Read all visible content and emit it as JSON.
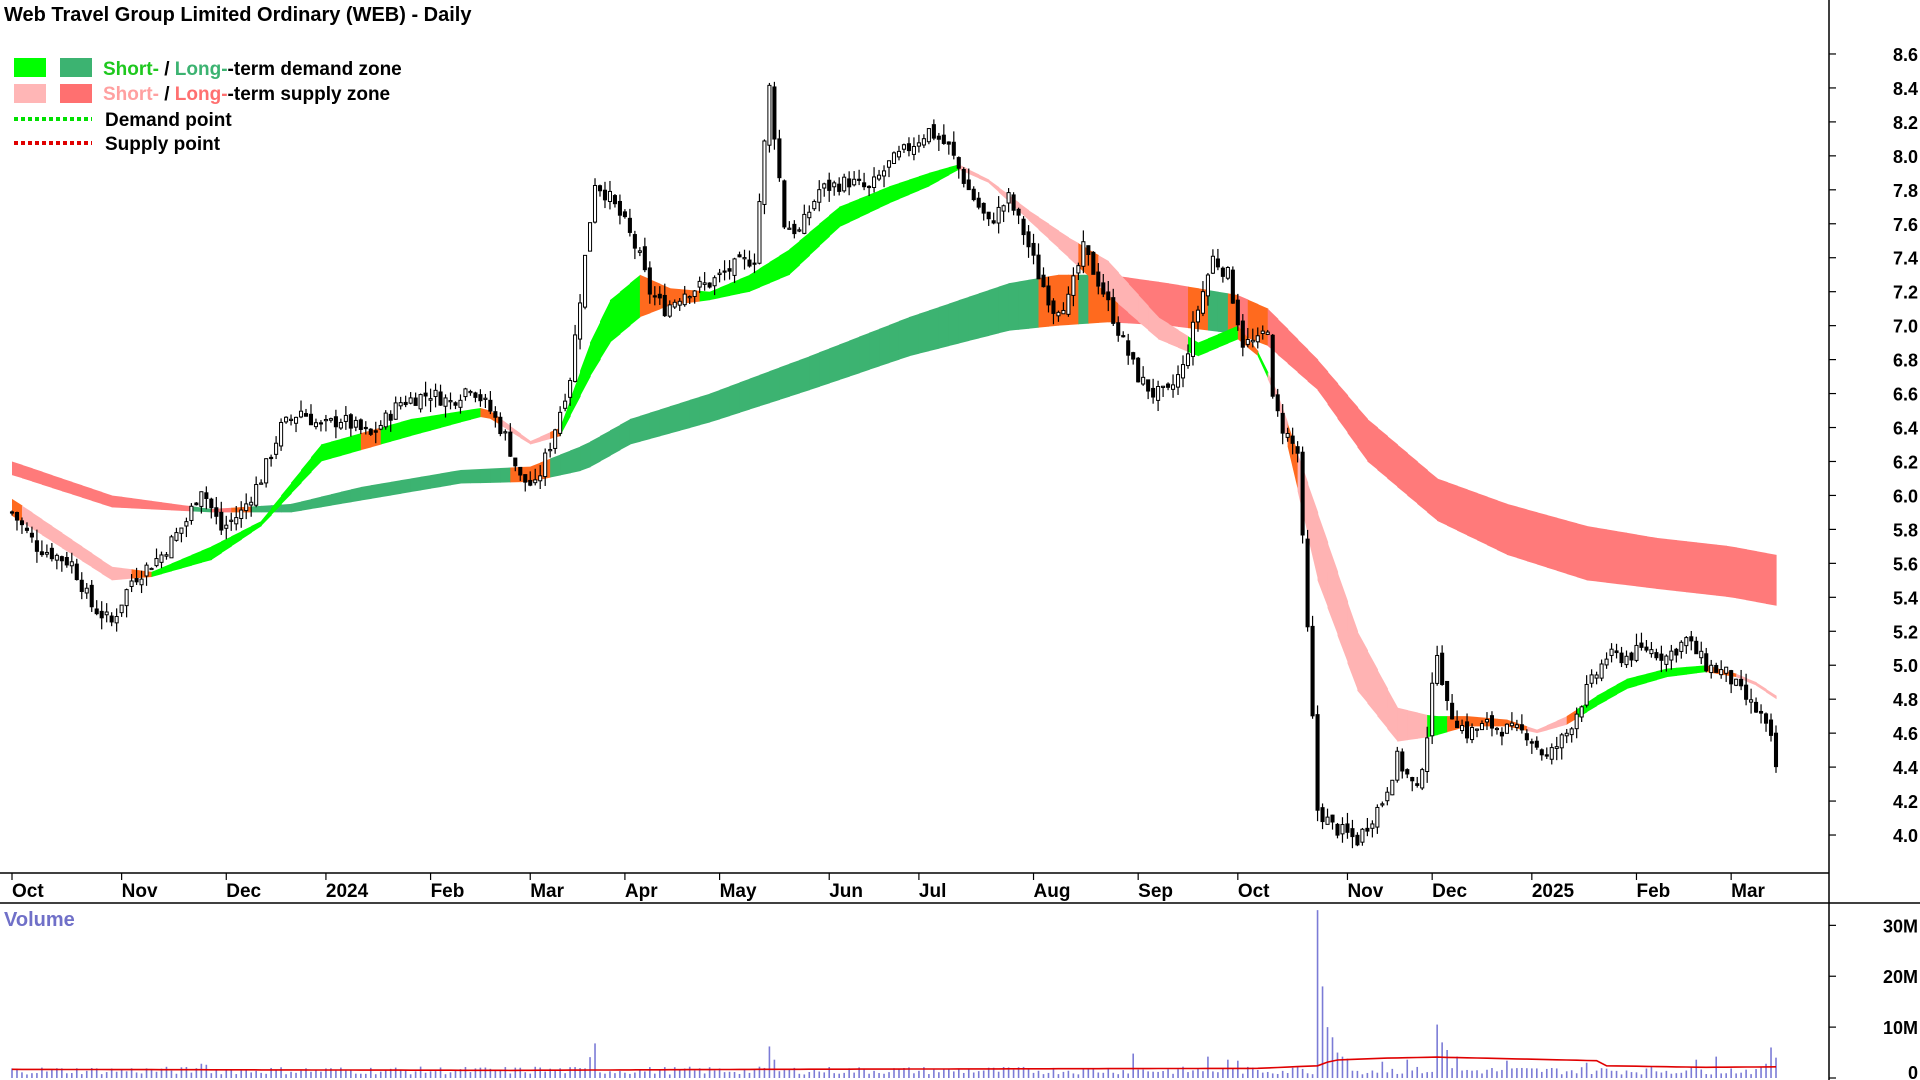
{
  "chart_data": {
    "type": "candlestick",
    "title": "Web Travel Group Limited Ordinary (WEB) - Daily",
    "legend": [
      {
        "short": "Short-",
        "sep": " / ",
        "long": "Long-",
        "rest": "-term demand zone",
        "short_color": "#00ff00",
        "long_color": "#3cb371",
        "text_color": "#1ec81e"
      },
      {
        "short": "Short-",
        "sep": " / ",
        "long": "Long-",
        "rest": "-term supply zone",
        "short_color": "#ffb6b6",
        "long_color": "#ff7070",
        "text_color": "#ffa0a0"
      },
      {
        "label": "Demand point",
        "color": "#00e000"
      },
      {
        "label": "Supply point",
        "color": "#e00000"
      }
    ],
    "y_ticks": [
      "8.6",
      "8.4",
      "8.2",
      "8.0",
      "7.8",
      "7.6",
      "7.4",
      "7.2",
      "7.0",
      "6.8",
      "6.6",
      "6.4",
      "6.2",
      "6.0",
      "5.8",
      "5.6",
      "5.4",
      "5.2",
      "5.0",
      "4.8",
      "4.6",
      "4.4",
      "4.2",
      "4.0"
    ],
    "ylim": [
      3.9,
      8.7
    ],
    "x_labels": [
      {
        "label": "Oct",
        "day": 0
      },
      {
        "label": "Nov",
        "day": 22
      },
      {
        "label": "Dec",
        "day": 43
      },
      {
        "label": "2024",
        "day": 63
      },
      {
        "label": "Feb",
        "day": 84
      },
      {
        "label": "Mar",
        "day": 104
      },
      {
        "label": "Apr",
        "day": 123
      },
      {
        "label": "May",
        "day": 142
      },
      {
        "label": "Jun",
        "day": 164
      },
      {
        "label": "Jul",
        "day": 182
      },
      {
        "label": "Aug",
        "day": 205
      },
      {
        "label": "Sep",
        "day": 226
      },
      {
        "label": "Oct",
        "day": 246
      },
      {
        "label": "Nov",
        "day": 268
      },
      {
        "label": "Dec",
        "day": 285
      },
      {
        "label": "2025",
        "day": 305
      },
      {
        "label": "Feb",
        "day": 326
      },
      {
        "label": "Mar",
        "day": 345
      }
    ],
    "n_days": 355,
    "close_anchors": [
      [
        0,
        5.9
      ],
      [
        5,
        5.7
      ],
      [
        12,
        5.6
      ],
      [
        16,
        5.35
      ],
      [
        20,
        5.25
      ],
      [
        24,
        5.5
      ],
      [
        30,
        5.65
      ],
      [
        35,
        5.85
      ],
      [
        38,
        6.05
      ],
      [
        42,
        5.8
      ],
      [
        46,
        5.9
      ],
      [
        50,
        6.1
      ],
      [
        54,
        6.4
      ],
      [
        58,
        6.5
      ],
      [
        62,
        6.4
      ],
      [
        66,
        6.45
      ],
      [
        72,
        6.35
      ],
      [
        78,
        6.55
      ],
      [
        84,
        6.6
      ],
      [
        88,
        6.55
      ],
      [
        92,
        6.65
      ],
      [
        96,
        6.5
      ],
      [
        99,
        6.35
      ],
      [
        102,
        6.1
      ],
      [
        105,
        6.05
      ],
      [
        108,
        6.3
      ],
      [
        112,
        6.7
      ],
      [
        115,
        7.4
      ],
      [
        117,
        7.85
      ],
      [
        120,
        7.75
      ],
      [
        123,
        7.6
      ],
      [
        126,
        7.4
      ],
      [
        128,
        7.2
      ],
      [
        131,
        7.1
      ],
      [
        135,
        7.2
      ],
      [
        140,
        7.25
      ],
      [
        145,
        7.35
      ],
      [
        149,
        7.4
      ],
      [
        152,
        8.4
      ],
      [
        155,
        7.6
      ],
      [
        158,
        7.55
      ],
      [
        162,
        7.8
      ],
      [
        168,
        7.85
      ],
      [
        172,
        7.8
      ],
      [
        176,
        7.95
      ],
      [
        180,
        8.05
      ],
      [
        184,
        8.15
      ],
      [
        188,
        8.05
      ],
      [
        192,
        7.8
      ],
      [
        196,
        7.6
      ],
      [
        200,
        7.75
      ],
      [
        203,
        7.55
      ],
      [
        206,
        7.3
      ],
      [
        209,
        7.1
      ],
      [
        212,
        7.15
      ],
      [
        215,
        7.45
      ],
      [
        219,
        7.2
      ],
      [
        223,
        6.9
      ],
      [
        226,
        6.7
      ],
      [
        229,
        6.6
      ],
      [
        232,
        6.6
      ],
      [
        235,
        6.75
      ],
      [
        238,
        7.1
      ],
      [
        241,
        7.4
      ],
      [
        244,
        7.3
      ],
      [
        247,
        6.9
      ],
      [
        250,
        6.9
      ],
      [
        252,
        7.0
      ],
      [
        253,
        6.55
      ],
      [
        255,
        6.4
      ],
      [
        258,
        6.25
      ],
      [
        262,
        4.15
      ],
      [
        265,
        4.05
      ],
      [
        270,
        3.97
      ],
      [
        275,
        4.2
      ],
      [
        278,
        4.45
      ],
      [
        282,
        4.25
      ],
      [
        284,
        4.6
      ],
      [
        286,
        5.1
      ],
      [
        288,
        4.75
      ],
      [
        292,
        4.6
      ],
      [
        296,
        4.65
      ],
      [
        300,
        4.62
      ],
      [
        304,
        4.6
      ],
      [
        308,
        4.45
      ],
      [
        312,
        4.6
      ],
      [
        316,
        4.85
      ],
      [
        320,
        5.05
      ],
      [
        324,
        5.05
      ],
      [
        328,
        5.1
      ],
      [
        332,
        5.05
      ],
      [
        336,
        5.15
      ],
      [
        340,
        5.0
      ],
      [
        344,
        4.95
      ],
      [
        348,
        4.8
      ],
      [
        351,
        4.7
      ],
      [
        353,
        4.55
      ],
      [
        354,
        4.4
      ]
    ],
    "bands": [
      {
        "name": "short_term",
        "upper": [
          [
            0,
            5.98
          ],
          [
            20,
            5.58
          ],
          [
            28,
            5.55
          ],
          [
            40,
            5.7
          ],
          [
            50,
            5.85
          ],
          [
            62,
            6.3
          ],
          [
            80,
            6.45
          ],
          [
            95,
            6.52
          ],
          [
            104,
            6.32
          ],
          [
            110,
            6.4
          ],
          [
            116,
            6.9
          ],
          [
            120,
            7.15
          ],
          [
            126,
            7.3
          ],
          [
            132,
            7.22
          ],
          [
            140,
            7.2
          ],
          [
            148,
            7.3
          ],
          [
            156,
            7.45
          ],
          [
            166,
            7.7
          ],
          [
            176,
            7.82
          ],
          [
            184,
            7.9
          ],
          [
            190,
            7.95
          ],
          [
            196,
            7.86
          ],
          [
            204,
            7.68
          ],
          [
            212,
            7.52
          ],
          [
            220,
            7.38
          ],
          [
            230,
            7.05
          ],
          [
            238,
            6.9
          ],
          [
            246,
            7.0
          ],
          [
            250,
            6.85
          ],
          [
            254,
            6.6
          ],
          [
            262,
            5.9
          ],
          [
            270,
            5.2
          ],
          [
            278,
            4.75
          ],
          [
            285,
            4.7
          ],
          [
            292,
            4.7
          ],
          [
            300,
            4.68
          ],
          [
            306,
            4.62
          ],
          [
            312,
            4.7
          ],
          [
            318,
            4.82
          ],
          [
            324,
            4.92
          ],
          [
            332,
            4.98
          ],
          [
            340,
            5.0
          ],
          [
            346,
            4.95
          ],
          [
            350,
            4.9
          ],
          [
            354,
            4.82
          ]
        ],
        "lower": [
          [
            0,
            5.88
          ],
          [
            20,
            5.5
          ],
          [
            28,
            5.52
          ],
          [
            40,
            5.62
          ],
          [
            50,
            5.82
          ],
          [
            62,
            6.2
          ],
          [
            80,
            6.35
          ],
          [
            95,
            6.47
          ],
          [
            104,
            6.3
          ],
          [
            110,
            6.35
          ],
          [
            116,
            6.7
          ],
          [
            120,
            6.9
          ],
          [
            126,
            7.05
          ],
          [
            132,
            7.12
          ],
          [
            140,
            7.15
          ],
          [
            148,
            7.2
          ],
          [
            156,
            7.3
          ],
          [
            166,
            7.58
          ],
          [
            176,
            7.72
          ],
          [
            184,
            7.82
          ],
          [
            190,
            7.92
          ],
          [
            196,
            7.84
          ],
          [
            204,
            7.62
          ],
          [
            212,
            7.4
          ],
          [
            220,
            7.18
          ],
          [
            230,
            6.92
          ],
          [
            238,
            6.82
          ],
          [
            246,
            6.92
          ],
          [
            250,
            6.82
          ],
          [
            254,
            6.55
          ],
          [
            262,
            5.5
          ],
          [
            270,
            4.85
          ],
          [
            278,
            4.55
          ],
          [
            285,
            4.58
          ],
          [
            292,
            4.64
          ],
          [
            300,
            4.64
          ],
          [
            306,
            4.6
          ],
          [
            312,
            4.65
          ],
          [
            318,
            4.76
          ],
          [
            324,
            4.86
          ],
          [
            332,
            4.93
          ],
          [
            340,
            4.96
          ],
          [
            346,
            4.93
          ],
          [
            350,
            4.88
          ],
          [
            354,
            4.8
          ]
        ]
      },
      {
        "name": "long_term",
        "upper": [
          [
            0,
            6.2
          ],
          [
            20,
            6.0
          ],
          [
            40,
            5.92
          ],
          [
            56,
            5.95
          ],
          [
            70,
            6.05
          ],
          [
            90,
            6.15
          ],
          [
            104,
            6.17
          ],
          [
            115,
            6.3
          ],
          [
            124,
            6.45
          ],
          [
            140,
            6.6
          ],
          [
            160,
            6.82
          ],
          [
            180,
            7.05
          ],
          [
            200,
            7.25
          ],
          [
            210,
            7.3
          ],
          [
            220,
            7.3
          ],
          [
            232,
            7.25
          ],
          [
            246,
            7.18
          ],
          [
            252,
            7.1
          ],
          [
            262,
            6.8
          ],
          [
            272,
            6.45
          ],
          [
            286,
            6.1
          ],
          [
            300,
            5.95
          ],
          [
            316,
            5.82
          ],
          [
            330,
            5.75
          ],
          [
            345,
            5.7
          ],
          [
            354,
            5.65
          ]
        ],
        "lower": [
          [
            0,
            6.12
          ],
          [
            20,
            5.93
          ],
          [
            40,
            5.9
          ],
          [
            56,
            5.9
          ],
          [
            70,
            5.97
          ],
          [
            90,
            6.07
          ],
          [
            104,
            6.08
          ],
          [
            115,
            6.15
          ],
          [
            124,
            6.3
          ],
          [
            140,
            6.43
          ],
          [
            160,
            6.62
          ],
          [
            180,
            6.82
          ],
          [
            200,
            6.97
          ],
          [
            210,
            7.0
          ],
          [
            220,
            7.02
          ],
          [
            232,
            7.0
          ],
          [
            246,
            6.95
          ],
          [
            252,
            6.88
          ],
          [
            262,
            6.62
          ],
          [
            272,
            6.2
          ],
          [
            286,
            5.85
          ],
          [
            300,
            5.65
          ],
          [
            316,
            5.5
          ],
          [
            330,
            5.45
          ],
          [
            345,
            5.4
          ],
          [
            354,
            5.35
          ]
        ]
      }
    ],
    "volume": {
      "label": "Volume",
      "y_ticks": [
        "30M",
        "20M",
        "10M",
        "0"
      ],
      "ylim": [
        0,
        34000000
      ],
      "baseline": 1400000,
      "spikes": [
        [
          38,
          2800000
        ],
        [
          39,
          2600000
        ],
        [
          105,
          2200000
        ],
        [
          116,
          4100000
        ],
        [
          117,
          6800000
        ],
        [
          152,
          6200000
        ],
        [
          153,
          3600000
        ],
        [
          225,
          4800000
        ],
        [
          240,
          4200000
        ],
        [
          244,
          3600000
        ],
        [
          246,
          3400000
        ],
        [
          258,
          2200000
        ],
        [
          262,
          33000000
        ],
        [
          263,
          18000000
        ],
        [
          264,
          10000000
        ],
        [
          265,
          8000000
        ],
        [
          266,
          5000000
        ],
        [
          267,
          4200000
        ],
        [
          268,
          3800000
        ],
        [
          275,
          3200000
        ],
        [
          280,
          3600000
        ],
        [
          286,
          10500000
        ],
        [
          287,
          7000000
        ],
        [
          288,
          5500000
        ],
        [
          290,
          4200000
        ],
        [
          300,
          3400000
        ],
        [
          316,
          3000000
        ],
        [
          338,
          3600000
        ],
        [
          342,
          4200000
        ],
        [
          352,
          2800000
        ],
        [
          353,
          6000000
        ],
        [
          354,
          4000000
        ]
      ],
      "average": [
        [
          0,
          1700000
        ],
        [
          50,
          1600000
        ],
        [
          100,
          1500000
        ],
        [
          150,
          1700000
        ],
        [
          200,
          1800000
        ],
        [
          250,
          1900000
        ],
        [
          262,
          2400000
        ],
        [
          265,
          3500000
        ],
        [
          275,
          3900000
        ],
        [
          286,
          4100000
        ],
        [
          300,
          3800000
        ],
        [
          318,
          3400000
        ],
        [
          320,
          2400000
        ],
        [
          340,
          2100000
        ],
        [
          354,
          2200000
        ]
      ]
    }
  }
}
